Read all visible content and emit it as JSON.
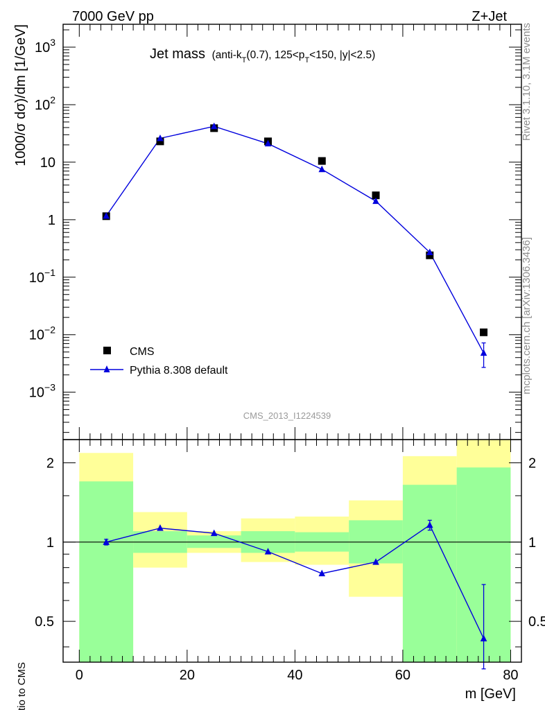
{
  "header": {
    "left": "7000 GeV pp",
    "right": "Z+Jet"
  },
  "side_text": {
    "rivet": "Rivet 3.1.10,  3.1M events",
    "mcplots": "mcplots.cern.ch [arXiv:1306.3436]"
  },
  "analysis_id": "CMS_2013_I1224539",
  "colors": {
    "data": "#000000",
    "mc": "#0000dd",
    "band_inner": "#99ff99",
    "band_outer": "#ffff99"
  },
  "chart_data": [
    {
      "type": "scatter",
      "title_main": "Jet mass",
      "title_sub_parts": [
        "(anti-k",
        "T",
        "(0.7), 125<p",
        "T",
        "<150, |y|<2.5)"
      ],
      "ylabel": "1000/σ dσ)/dm [1/GeV]",
      "yscale": "log",
      "xlim": [
        -3,
        82
      ],
      "ylim": [
        0.00015,
        2500
      ],
      "y_tick_labels": [
        {
          "value": 1000,
          "base": "10",
          "exp": "3"
        },
        {
          "value": 100,
          "base": "10",
          "exp": "2"
        },
        {
          "value": 10,
          "base": "10",
          "exp": ""
        },
        {
          "value": 1,
          "base": "1",
          "exp": ""
        },
        {
          "value": 0.1,
          "base": "10",
          "exp": "−1"
        },
        {
          "value": 0.01,
          "base": "10",
          "exp": "−2"
        },
        {
          "value": 0.001,
          "base": "10",
          "exp": "−3"
        }
      ],
      "legend_position": "bottom-left",
      "series": [
        {
          "name": "CMS",
          "marker": "square",
          "x": [
            5,
            15,
            25,
            35,
            45,
            55,
            65,
            75
          ],
          "y": [
            1.15,
            23,
            39,
            23,
            10.5,
            2.65,
            0.24,
            0.011
          ]
        },
        {
          "name": "Pythia 8.308 default",
          "marker": "triangle",
          "x": [
            5,
            15,
            25,
            35,
            45,
            55,
            65,
            75
          ],
          "y": [
            1.16,
            26,
            42,
            21,
            7.5,
            2.1,
            0.27,
            0.0048
          ],
          "yerr_low": [
            0,
            0,
            0,
            0,
            0,
            0,
            0,
            0.0021
          ],
          "yerr_high": [
            0,
            0,
            0,
            0,
            0,
            0,
            0,
            0.0024
          ]
        }
      ]
    },
    {
      "type": "line",
      "ylabel": "Ratio to CMS",
      "xlabel": "m [GeV]",
      "yscale": "log",
      "xlim": [
        -3,
        82
      ],
      "ylim": [
        0.35,
        2.45
      ],
      "x_ticks": [
        0,
        20,
        40,
        60,
        80
      ],
      "y_ticks": [
        0.5,
        1,
        2
      ],
      "y_tick_labels": [
        "0.5",
        "1",
        "2"
      ],
      "bins": [
        [
          0,
          10
        ],
        [
          10,
          20
        ],
        [
          20,
          30
        ],
        [
          30,
          40
        ],
        [
          40,
          50
        ],
        [
          50,
          60
        ],
        [
          60,
          70
        ],
        [
          70,
          80
        ]
      ],
      "band_outer": [
        [
          0.35,
          2.18
        ],
        [
          0.8,
          1.3
        ],
        [
          0.91,
          1.1
        ],
        [
          0.84,
          1.23
        ],
        [
          0.82,
          1.25
        ],
        [
          0.62,
          1.44
        ],
        [
          0.37,
          2.12
        ],
        [
          0.35,
          2.45
        ]
      ],
      "band_inner": [
        [
          0.35,
          1.7
        ],
        [
          0.91,
          1.1
        ],
        [
          0.95,
          1.06
        ],
        [
          0.91,
          1.1
        ],
        [
          0.92,
          1.09
        ],
        [
          0.83,
          1.21
        ],
        [
          0.35,
          1.65
        ],
        [
          0.35,
          1.92
        ]
      ],
      "series": [
        {
          "name": "Pythia 8.308 default",
          "x": [
            5,
            15,
            25,
            35,
            45,
            55,
            65,
            75
          ],
          "y": [
            1.0,
            1.13,
            1.08,
            0.92,
            0.76,
            0.84,
            1.16,
            0.43
          ],
          "yerr_low": [
            0.025,
            0.01,
            0.01,
            0.01,
            0.01,
            0.01,
            0.05,
            0.1
          ],
          "yerr_high": [
            0.025,
            0.01,
            0.01,
            0.01,
            0.01,
            0.01,
            0.05,
            0.26
          ]
        }
      ]
    }
  ]
}
